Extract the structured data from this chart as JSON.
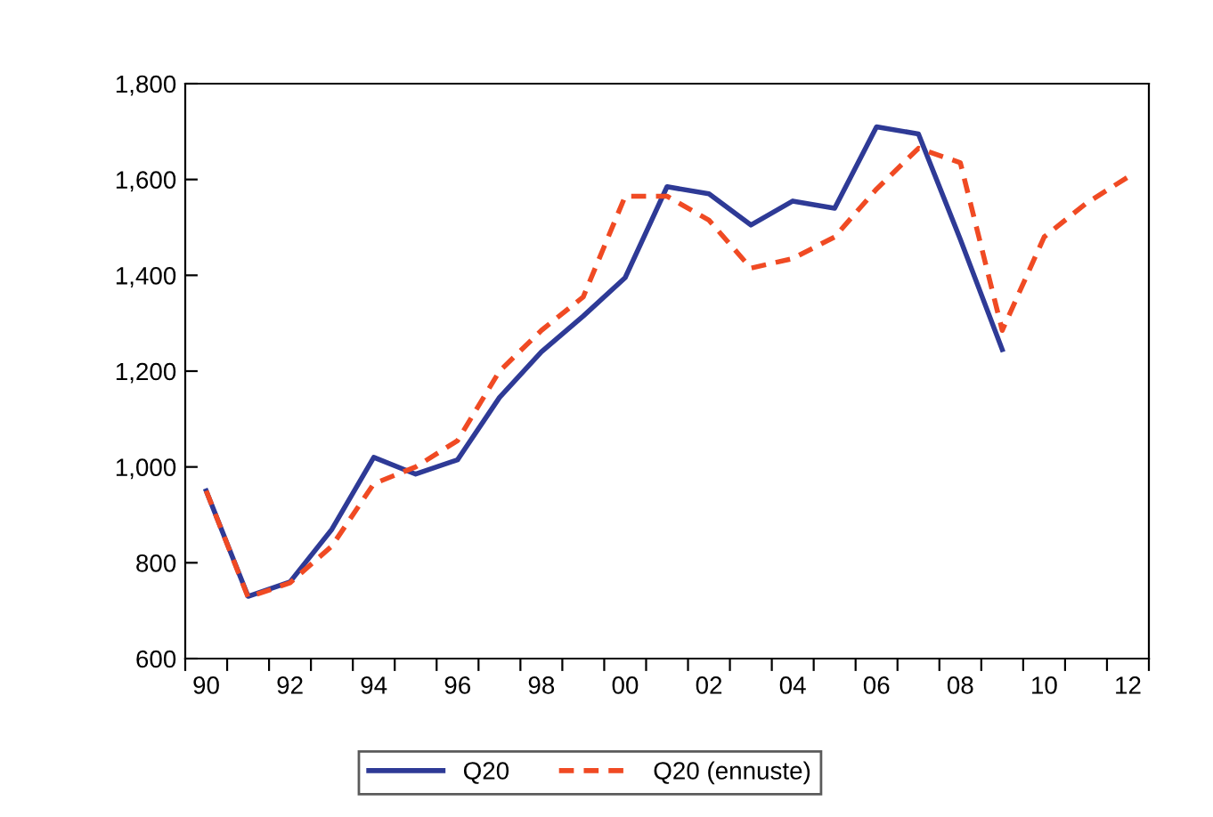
{
  "chart_data": {
    "type": "line",
    "categories": [
      "90",
      null,
      "92",
      null,
      "94",
      null,
      "96",
      null,
      "98",
      null,
      "00",
      null,
      "02",
      null,
      "04",
      null,
      "06",
      null,
      "08",
      null,
      "10",
      null,
      "12"
    ],
    "series": [
      {
        "name": "Q20",
        "color": "#2e3a96",
        "line_style": "solid",
        "values": [
          950,
          730,
          760,
          870,
          1020,
          985,
          1015,
          1145,
          1240,
          1315,
          1395,
          1585,
          1570,
          1505,
          1555,
          1540,
          1710,
          1695,
          1475,
          1245,
          null,
          null,
          null
        ]
      },
      {
        "name": "Q20 (ennuste)",
        "color": "#f04a23",
        "line_style": "dashed",
        "values": [
          950,
          728,
          758,
          835,
          965,
          1000,
          1055,
          1200,
          1285,
          1355,
          1565,
          1565,
          1515,
          1415,
          1435,
          1480,
          1580,
          1665,
          1635,
          1285,
          1480,
          1550,
          1605
        ]
      }
    ],
    "ylim": [
      600,
      1800
    ],
    "yticks": [
      {
        "value": 600,
        "label": "600"
      },
      {
        "value": 800,
        "label": "800"
      },
      {
        "value": 1000,
        "label": "1,000"
      },
      {
        "value": 1200,
        "label": "1,200"
      },
      {
        "value": 1400,
        "label": "1,400"
      },
      {
        "value": 1600,
        "label": "1,600"
      },
      {
        "value": 1800,
        "label": "1,800"
      }
    ],
    "grid": false,
    "legend": "bottom",
    "marker": "none"
  }
}
